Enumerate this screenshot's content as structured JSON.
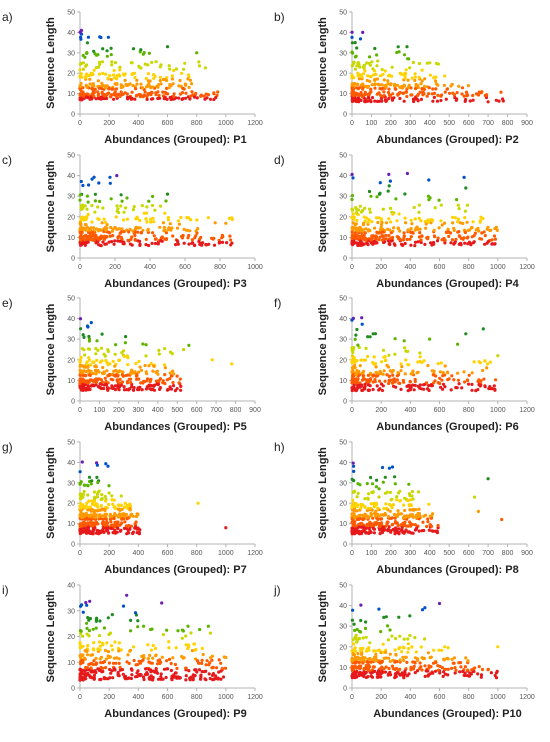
{
  "figure": {
    "colors": {
      "axis": "#b3b3b3",
      "tick_text": "#555555",
      "label_text": "#222222",
      "bins": [
        "#e6191b",
        "#ff5a00",
        "#ff9a00",
        "#ffd200",
        "#c8d800",
        "#5db400",
        "#1e8c1e",
        "#0050c8",
        "#6a1fb4"
      ]
    }
  },
  "chart_data": [
    {
      "type": "scatter",
      "panel_label": "a)",
      "xlabel": "Abundances (Grouped): P1",
      "ylabel": "Sequence Length",
      "xlim": [
        0,
        1200
      ],
      "xticks": [
        0,
        200,
        400,
        600,
        800,
        1000,
        1200
      ],
      "ylim": [
        0,
        50
      ],
      "yticks": [
        0,
        10,
        20,
        30,
        40,
        50
      ],
      "grid": false,
      "seed": 11,
      "density": [
        {
          "len": [
            7,
            11
          ],
          "count": 170,
          "xmax": 950
        },
        {
          "len": [
            12,
            15
          ],
          "count": 90,
          "xmax": 780
        },
        {
          "len": [
            16,
            20
          ],
          "count": 60,
          "xmax": 760
        },
        {
          "len": [
            21,
            26
          ],
          "count": 40,
          "xmax": 860
        },
        {
          "len": [
            27,
            33
          ],
          "count": 20,
          "xmax": 560
        },
        {
          "len": [
            34,
            41
          ],
          "count": 10,
          "xmax": 250
        }
      ],
      "highlights": [
        {
          "x": 600,
          "y": 33
        },
        {
          "x": 800,
          "y": 30
        },
        {
          "x": 10,
          "y": 41
        }
      ]
    },
    {
      "type": "scatter",
      "panel_label": "b)",
      "xlabel": "Abundances (Grouped): P2",
      "ylabel": "Sequence Length",
      "xlim": [
        0,
        900
      ],
      "xticks": [
        0,
        100,
        200,
        300,
        400,
        500,
        600,
        700,
        800,
        900
      ],
      "ylim": [
        0,
        50
      ],
      "yticks": [
        0,
        10,
        20,
        30,
        40,
        50
      ],
      "grid": false,
      "seed": 23,
      "density": [
        {
          "len": [
            6,
            11
          ],
          "count": 170,
          "xmax": 780
        },
        {
          "len": [
            12,
            15
          ],
          "count": 90,
          "xmax": 600
        },
        {
          "len": [
            16,
            20
          ],
          "count": 55,
          "xmax": 500
        },
        {
          "len": [
            21,
            26
          ],
          "count": 35,
          "xmax": 450
        },
        {
          "len": [
            27,
            33
          ],
          "count": 15,
          "xmax": 300
        },
        {
          "len": [
            34,
            41
          ],
          "count": 5,
          "xmax": 60
        }
      ],
      "highlights": [
        {
          "x": 55,
          "y": 40
        },
        {
          "x": 700,
          "y": 6
        }
      ]
    },
    {
      "type": "scatter",
      "panel_label": "c)",
      "xlabel": "Abundances (Grouped): P3",
      "ylabel": "Sequence Length",
      "xlim": [
        0,
        1000
      ],
      "xticks": [
        0,
        200,
        400,
        600,
        800,
        1000
      ],
      "ylim": [
        0,
        50
      ],
      "yticks": [
        0,
        10,
        20,
        30,
        40,
        50
      ],
      "grid": false,
      "seed": 37,
      "density": [
        {
          "len": [
            6,
            11
          ],
          "count": 180,
          "xmax": 900
        },
        {
          "len": [
            12,
            15
          ],
          "count": 90,
          "xmax": 700
        },
        {
          "len": [
            16,
            20
          ],
          "count": 55,
          "xmax": 880
        },
        {
          "len": [
            21,
            26
          ],
          "count": 30,
          "xmax": 500
        },
        {
          "len": [
            27,
            33
          ],
          "count": 15,
          "xmax": 500
        },
        {
          "len": [
            34,
            41
          ],
          "count": 8,
          "xmax": 220
        }
      ],
      "highlights": [
        {
          "x": 210,
          "y": 40
        },
        {
          "x": 500,
          "y": 31
        }
      ]
    },
    {
      "type": "scatter",
      "panel_label": "d)",
      "xlabel": "Abundances (Grouped): P4",
      "ylabel": "Sequence Length",
      "xlim": [
        0,
        1200
      ],
      "xticks": [
        0,
        200,
        400,
        600,
        800,
        1000,
        1200
      ],
      "ylim": [
        0,
        50
      ],
      "yticks": [
        0,
        10,
        20,
        30,
        40,
        50
      ],
      "grid": false,
      "seed": 41,
      "density": [
        {
          "len": [
            6,
            11
          ],
          "count": 200,
          "xmax": 1000
        },
        {
          "len": [
            12,
            15
          ],
          "count": 100,
          "xmax": 1000
        },
        {
          "len": [
            16,
            20
          ],
          "count": 60,
          "xmax": 900
        },
        {
          "len": [
            21,
            26
          ],
          "count": 30,
          "xmax": 800
        },
        {
          "len": [
            27,
            33
          ],
          "count": 15,
          "xmax": 750
        },
        {
          "len": [
            34,
            41
          ],
          "count": 8,
          "xmax": 780
        }
      ],
      "highlights": [
        {
          "x": 380,
          "y": 41
        },
        {
          "x": 780,
          "y": 34
        }
      ]
    },
    {
      "type": "scatter",
      "panel_label": "e)",
      "xlabel": "Abundances (Grouped): P5",
      "ylabel": "Sequence Length",
      "xlim": [
        0,
        900
      ],
      "xticks": [
        0,
        100,
        200,
        300,
        400,
        500,
        600,
        700,
        800,
        900
      ],
      "ylim": [
        0,
        50
      ],
      "yticks": [
        0,
        10,
        20,
        30,
        40,
        50
      ],
      "grid": false,
      "seed": 53,
      "density": [
        {
          "len": [
            5,
            11
          ],
          "count": 200,
          "xmax": 520
        },
        {
          "len": [
            12,
            15
          ],
          "count": 90,
          "xmax": 500
        },
        {
          "len": [
            16,
            20
          ],
          "count": 50,
          "xmax": 450
        },
        {
          "len": [
            21,
            26
          ],
          "count": 30,
          "xmax": 560
        },
        {
          "len": [
            27,
            33
          ],
          "count": 12,
          "xmax": 350
        },
        {
          "len": [
            34,
            41
          ],
          "count": 5,
          "xmax": 80
        }
      ],
      "highlights": [
        {
          "x": 680,
          "y": 20
        },
        {
          "x": 780,
          "y": 18
        },
        {
          "x": 560,
          "y": 27
        }
      ]
    },
    {
      "type": "scatter",
      "panel_label": "f)",
      "xlabel": "Abundances (Grouped): P6",
      "ylabel": "Sequence Length",
      "xlim": [
        0,
        1200
      ],
      "xticks": [
        0,
        200,
        400,
        600,
        800,
        1000,
        1200
      ],
      "ylim": [
        0,
        50
      ],
      "yticks": [
        0,
        10,
        20,
        30,
        40,
        50
      ],
      "grid": false,
      "seed": 67,
      "density": [
        {
          "len": [
            5,
            11
          ],
          "count": 170,
          "xmax": 1000
        },
        {
          "len": [
            12,
            15
          ],
          "count": 80,
          "xmax": 900
        },
        {
          "len": [
            16,
            20
          ],
          "count": 45,
          "xmax": 1000
        },
        {
          "len": [
            21,
            26
          ],
          "count": 25,
          "xmax": 500
        },
        {
          "len": [
            27,
            33
          ],
          "count": 12,
          "xmax": 850
        },
        {
          "len": [
            34,
            41
          ],
          "count": 5,
          "xmax": 120
        }
      ],
      "highlights": [
        {
          "x": 900,
          "y": 35
        },
        {
          "x": 1000,
          "y": 22
        }
      ]
    },
    {
      "type": "scatter",
      "panel_label": "g)",
      "xlabel": "Abundances (Grouped): P7",
      "ylabel": "Sequence Length",
      "xlim": [
        0,
        1200
      ],
      "xticks": [
        0,
        200,
        400,
        600,
        800,
        1000,
        1200
      ],
      "ylim": [
        0,
        50
      ],
      "yticks": [
        0,
        10,
        20,
        30,
        40,
        50
      ],
      "grid": false,
      "seed": 71,
      "density": [
        {
          "len": [
            5,
            11
          ],
          "count": 180,
          "xmax": 420
        },
        {
          "len": [
            12,
            15
          ],
          "count": 110,
          "xmax": 400
        },
        {
          "len": [
            16,
            20
          ],
          "count": 70,
          "xmax": 350
        },
        {
          "len": [
            21,
            26
          ],
          "count": 35,
          "xmax": 300
        },
        {
          "len": [
            27,
            33
          ],
          "count": 15,
          "xmax": 250
        },
        {
          "len": [
            34,
            41
          ],
          "count": 6,
          "xmax": 280
        }
      ],
      "highlights": [
        {
          "x": 810,
          "y": 20
        },
        {
          "x": 1000,
          "y": 8
        }
      ]
    },
    {
      "type": "scatter",
      "panel_label": "h)",
      "xlabel": "Abundances (Grouped): P8",
      "ylabel": "Sequence Length",
      "xlim": [
        0,
        900
      ],
      "xticks": [
        0,
        100,
        200,
        300,
        400,
        500,
        600,
        700,
        800,
        900
      ],
      "ylim": [
        0,
        50
      ],
      "yticks": [
        0,
        10,
        20,
        30,
        40,
        50
      ],
      "grid": false,
      "seed": 83,
      "density": [
        {
          "len": [
            5,
            11
          ],
          "count": 190,
          "xmax": 450
        },
        {
          "len": [
            12,
            15
          ],
          "count": 110,
          "xmax": 420
        },
        {
          "len": [
            16,
            20
          ],
          "count": 70,
          "xmax": 400
        },
        {
          "len": [
            21,
            26
          ],
          "count": 35,
          "xmax": 350
        },
        {
          "len": [
            27,
            33
          ],
          "count": 15,
          "xmax": 300
        },
        {
          "len": [
            34,
            41
          ],
          "count": 6,
          "xmax": 250
        }
      ],
      "highlights": [
        {
          "x": 700,
          "y": 32
        },
        {
          "x": 630,
          "y": 23
        },
        {
          "x": 650,
          "y": 16
        },
        {
          "x": 770,
          "y": 12
        }
      ]
    },
    {
      "type": "scatter",
      "panel_label": "i)",
      "xlabel": "Abundances (Grouped): P9",
      "ylabel": "Sequence Length",
      "xlim": [
        0,
        1200
      ],
      "xticks": [
        0,
        200,
        400,
        600,
        800,
        1000,
        1200
      ],
      "ylim": [
        0,
        40
      ],
      "yticks": [
        0,
        10,
        20,
        30,
        40
      ],
      "grid": false,
      "seed": 97,
      "density": [
        {
          "len": [
            3,
            8
          ],
          "count": 200,
          "xmax": 1000
        },
        {
          "len": [
            9,
            13
          ],
          "count": 100,
          "xmax": 1000
        },
        {
          "len": [
            14,
            18
          ],
          "count": 55,
          "xmax": 900
        },
        {
          "len": [
            19,
            24
          ],
          "count": 30,
          "xmax": 900
        },
        {
          "len": [
            25,
            30
          ],
          "count": 15,
          "xmax": 400
        },
        {
          "len": [
            31,
            36
          ],
          "count": 6,
          "xmax": 330
        }
      ],
      "highlights": [
        {
          "x": 320,
          "y": 36
        },
        {
          "x": 560,
          "y": 33
        },
        {
          "x": 880,
          "y": 24
        }
      ]
    },
    {
      "type": "scatter",
      "panel_label": "j)",
      "xlabel": "Abundances (Grouped): P10",
      "ylabel": "Sequence Length",
      "xlim": [
        0,
        1200
      ],
      "xticks": [
        0,
        200,
        400,
        600,
        800,
        1000,
        1200
      ],
      "ylim": [
        0,
        50
      ],
      "yticks": [
        0,
        10,
        20,
        30,
        40,
        50
      ],
      "grid": false,
      "seed": 101,
      "density": [
        {
          "len": [
            5,
            11
          ],
          "count": 200,
          "xmax": 1000
        },
        {
          "len": [
            12,
            15
          ],
          "count": 100,
          "xmax": 800
        },
        {
          "len": [
            16,
            20
          ],
          "count": 50,
          "xmax": 700
        },
        {
          "len": [
            21,
            26
          ],
          "count": 25,
          "xmax": 500
        },
        {
          "len": [
            27,
            33
          ],
          "count": 12,
          "xmax": 300
        },
        {
          "len": [
            34,
            41
          ],
          "count": 8,
          "xmax": 600
        }
      ],
      "highlights": [
        {
          "x": 600,
          "y": 41
        },
        {
          "x": 500,
          "y": 39
        },
        {
          "x": 1000,
          "y": 20
        }
      ]
    }
  ]
}
